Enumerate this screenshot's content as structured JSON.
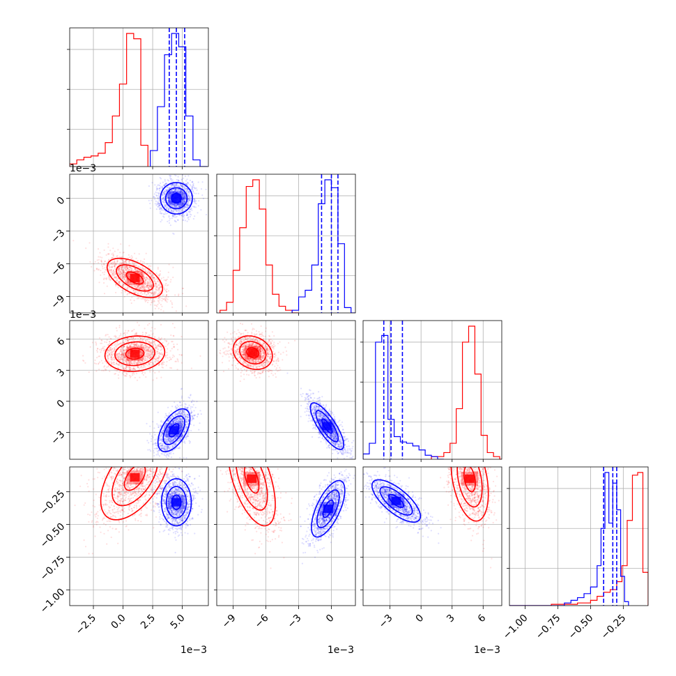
{
  "chart_data": {
    "type": "corner",
    "title": "",
    "series": [
      {
        "name": "",
        "color": "#ff0000"
      },
      {
        "name": "",
        "color": "#0000ff"
      }
    ],
    "parameters": [
      {
        "index": 0,
        "offset": "1e−3",
        "range": [
          -4.5,
          7.2
        ],
        "ticks": [
          -2.5,
          0.0,
          2.5,
          5.0
        ],
        "tick_labels": [
          "−2.5",
          "0.0",
          "2.5",
          "5.0"
        ],
        "hist": {
          "red": {
            "edges": [
              -4.5,
              -3.9,
              -3.3,
              -2.7,
              -2.1,
              -1.5,
              -0.9,
              -0.3,
              0.3,
              0.9,
              1.5,
              2.1
            ],
            "counts": [
              0.02,
              0.05,
              0.07,
              0.08,
              0.1,
              0.18,
              0.38,
              0.62,
              1.0,
              0.96,
              0.16,
              0.0
            ]
          },
          "blue": {
            "edges": [
              2.3,
              2.9,
              3.5,
              4.1,
              4.7,
              5.3,
              5.9,
              6.5,
              7.1
            ],
            "counts": [
              0.12,
              0.45,
              0.84,
              1.0,
              0.9,
              0.38,
              0.05,
              0.0
            ]
          }
        },
        "blue_quantiles": [
          3.9,
          4.5,
          5.2
        ]
      },
      {
        "index": 1,
        "offset": "1e−3",
        "range": [
          -10.5,
          2.2
        ],
        "ticks": [
          -9,
          -6,
          -3,
          0
        ],
        "tick_labels": [
          "−9",
          "−6",
          "−3",
          "0"
        ],
        "hist": {
          "red": {
            "edges": [
              -10.2,
              -9.6,
              -9.0,
              -8.4,
              -7.8,
              -7.2,
              -6.6,
              -6.0,
              -5.4,
              -4.8,
              -4.2,
              -3.6,
              -3.0
            ],
            "counts": [
              0.02,
              0.08,
              0.32,
              0.64,
              0.95,
              1.0,
              0.78,
              0.36,
              0.14,
              0.05,
              0.02,
              0.0
            ]
          },
          "blue": {
            "edges": [
              -3.6,
              -3.0,
              -2.4,
              -1.8,
              -1.2,
              -0.6,
              0.0,
              0.6,
              1.2,
              1.8,
              2.2
            ],
            "counts": [
              0.02,
              0.12,
              0.17,
              0.36,
              0.82,
              1.0,
              0.94,
              0.52,
              0.04,
              0.0
            ]
          }
        },
        "blue_quantiles": [
          -0.9,
          0.0,
          0.6
        ]
      },
      {
        "index": 2,
        "offset": "1e−3",
        "range": [
          -5.6,
          7.8
        ],
        "ticks": [
          -3,
          0,
          3,
          6
        ],
        "tick_labels": [
          "−3",
          "0",
          "3",
          "6"
        ],
        "hist": {
          "blue": {
            "edges": [
              -5.6,
              -5.0,
              -4.4,
              -3.8,
              -3.2,
              -2.6,
              -2.0,
              -1.4,
              -0.8,
              -0.2,
              0.4,
              1.0,
              1.6,
              2.2
            ],
            "counts": [
              0.04,
              0.12,
              0.88,
              0.93,
              0.3,
              0.17,
              0.13,
              0.12,
              0.1,
              0.07,
              0.03,
              0.02,
              0.0
            ]
          },
          "red": {
            "edges": [
              1.0,
              1.6,
              2.2,
              2.8,
              3.4,
              4.0,
              4.6,
              5.2,
              5.8,
              6.4,
              7.0,
              7.6,
              7.8
            ],
            "counts": [
              0.02,
              0.02,
              0.05,
              0.12,
              0.38,
              0.88,
              1.0,
              0.64,
              0.18,
              0.05,
              0.02,
              0.0
            ]
          }
        },
        "blue_quantiles": [
          -3.6,
          -2.9,
          -1.8
        ]
      },
      {
        "index": 3,
        "offset": "",
        "range": [
          -1.12,
          -0.06
        ],
        "ticks": [
          -1.0,
          -0.75,
          -0.5,
          -0.25
        ],
        "tick_labels": [
          "−1.00",
          "−0.75",
          "−0.50",
          "−0.25"
        ],
        "hist": {
          "blue": {
            "edges": [
              -1.12,
              -0.7,
              -0.65,
              -0.6,
              -0.55,
              -0.5,
              -0.45,
              -0.42,
              -0.39,
              -0.36,
              -0.33,
              -0.3,
              -0.27,
              -0.24,
              -0.21
            ],
            "counts": [
              0.0,
              0.02,
              0.04,
              0.06,
              0.09,
              0.14,
              0.3,
              0.58,
              1.0,
              0.62,
              0.92,
              0.72,
              0.22,
              0.03
            ]
          },
          "red": {
            "edges": [
              -1.12,
              -0.8,
              -0.6,
              -0.5,
              -0.45,
              -0.4,
              -0.35,
              -0.3,
              -0.26,
              -0.22,
              -0.18,
              -0.14,
              -0.1,
              -0.06
            ],
            "counts": [
              0.0,
              0.01,
              0.02,
              0.04,
              0.07,
              0.1,
              0.12,
              0.18,
              0.3,
              0.64,
              0.98,
              1.0,
              0.25
            ]
          }
        },
        "blue_quantiles": [
          -0.4,
          -0.33,
          -0.3
        ]
      }
    ],
    "clusters": {
      "red": {
        "mean": [
          1.0,
          -7.3,
          4.7,
          -0.15
        ],
        "std": [
          1.3,
          1.0,
          0.9,
          0.18
        ],
        "pairs": {
          "1-0": {
            "center": [
              1.0,
              -7.3
            ],
            "sx": 1.3,
            "sy": 1.0,
            "rho": -0.55
          },
          "2-0": {
            "center": [
              1.0,
              4.6
            ],
            "sx": 1.4,
            "sy": 0.95,
            "rho": 0.1
          },
          "2-1": {
            "center": [
              -7.2,
              4.7
            ],
            "sx": 1.0,
            "sy": 0.9,
            "rho": -0.2
          },
          "3-0": {
            "center": [
              1.0,
              -0.14
            ],
            "sx": 1.6,
            "sy": 0.18,
            "rho": 0.55
          },
          "3-1": {
            "center": [
              -7.3,
              -0.15
            ],
            "sx": 1.2,
            "sy": 0.2,
            "rho": -0.55
          },
          "3-2": {
            "center": [
              4.7,
              -0.15
            ],
            "sx": 1.0,
            "sy": 0.18,
            "rho": -0.35
          }
        }
      },
      "blue": {
        "mean": [
          4.5,
          0.0,
          -2.9,
          -0.32
        ],
        "std": [
          0.75,
          0.8,
          0.9,
          0.09
        ],
        "pairs": {
          "1-0": {
            "center": [
              4.5,
              0.0
            ],
            "sx": 0.75,
            "sy": 0.8,
            "rho": 0.0
          },
          "2-0": {
            "center": [
              4.3,
              -2.8
            ],
            "sx": 0.75,
            "sy": 1.15,
            "rho": 0.55
          },
          "2-1": {
            "center": [
              -0.4,
              -2.4
            ],
            "sx": 0.85,
            "sy": 1.25,
            "rho": -0.8
          },
          "3-0": {
            "center": [
              4.5,
              -0.33
            ],
            "sx": 0.7,
            "sy": 0.1,
            "rho": 0.0
          },
          "3-1": {
            "center": [
              -0.3,
              -0.38
            ],
            "sx": 0.85,
            "sy": 0.12,
            "rho": 0.65
          },
          "3-2": {
            "center": [
              -2.4,
              -0.32
            ],
            "sx": 1.3,
            "sy": 0.09,
            "rho": -0.72
          }
        }
      }
    },
    "grid": true
  }
}
